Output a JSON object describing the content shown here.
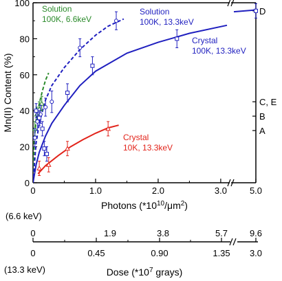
{
  "chart_data": {
    "type": "scatter",
    "title": "",
    "colors": {
      "solution_66": "#2a8a2a",
      "solution_133": "#1f1fbf",
      "crystal_133": "#1f1fbf",
      "crystal_10k": "#e2231a",
      "black": "#000000"
    },
    "y_axis": {
      "label": "Mn(II) Content (%)",
      "ylim": [
        0,
        100
      ],
      "ticks": [
        "0",
        "20",
        "40",
        "60",
        "80",
        "100"
      ]
    },
    "x_axis": {
      "label": "Photons (*10",
      "label_exp": "10",
      "label_tail": "/μm",
      "label_exp2": "2",
      "label_close": ")",
      "ticks": [
        "0",
        "1.0",
        "2.0",
        "3.0",
        "5.0"
      ],
      "xlim": [
        0,
        5.0
      ],
      "break_between": [
        3.1,
        4.8
      ]
    },
    "right_markers": [
      {
        "label": "D",
        "y": 95.5
      },
      {
        "label": "C, E",
        "y": 45
      },
      {
        "label": "B",
        "y": 37
      },
      {
        "label": "A",
        "y": 29
      }
    ],
    "series": [
      {
        "name": "Solution 100K, 6.6keV",
        "label_line1": "Solution",
        "label_line2": "100K, 6.6keV",
        "key": "solution_66",
        "marker": "triangle",
        "line": "dashed",
        "points": [
          {
            "x": 0.03,
            "y": 30,
            "err": 4
          },
          {
            "x": 0.06,
            "y": 38,
            "err": 4
          },
          {
            "x": 0.1,
            "y": 41,
            "err": 4
          },
          {
            "x": 0.14,
            "y": 44,
            "err": 4
          }
        ],
        "fit": [
          [
            0,
            0
          ],
          [
            0.02,
            24
          ],
          [
            0.05,
            35
          ],
          [
            0.1,
            44
          ],
          [
            0.15,
            51
          ],
          [
            0.2,
            57
          ],
          [
            0.25,
            61
          ]
        ]
      },
      {
        "name": "Solution 100K, 13.3keV",
        "label_line1": "Solution",
        "label_line2": "100K, 13.3keV",
        "key": "solution_133",
        "marker": "circle",
        "line": "dashed",
        "points": [
          {
            "x": 0.03,
            "y": 25,
            "err": 5
          },
          {
            "x": 0.07,
            "y": 34,
            "err": 5
          },
          {
            "x": 0.12,
            "y": 38,
            "err": 5
          },
          {
            "x": 0.2,
            "y": 42,
            "err": 5
          },
          {
            "x": 0.3,
            "y": 45,
            "err": 6
          },
          {
            "x": 0.75,
            "y": 75,
            "err": 5
          },
          {
            "x": 1.33,
            "y": 90,
            "err": 5
          }
        ],
        "fit": [
          [
            0,
            0
          ],
          [
            0.05,
            22
          ],
          [
            0.1,
            33
          ],
          [
            0.2,
            46
          ],
          [
            0.3,
            54
          ],
          [
            0.5,
            64
          ],
          [
            0.75,
            74
          ],
          [
            1.0,
            82
          ],
          [
            1.2,
            87
          ],
          [
            1.45,
            91
          ]
        ]
      },
      {
        "name": "Crystal 100K, 13.3keV",
        "label_line1": "Crystal",
        "label_line2": "100K, 13.3keV",
        "key": "crystal_133",
        "marker": "square",
        "line": "solid",
        "points": [
          {
            "x": 0.05,
            "y": 40,
            "err": 4
          },
          {
            "x": 0.1,
            "y": 36,
            "err": 4
          },
          {
            "x": 0.15,
            "y": 30,
            "err": 4
          },
          {
            "x": 0.18,
            "y": 19,
            "err": 4
          },
          {
            "x": 0.22,
            "y": 16,
            "err": 4
          },
          {
            "x": 0.55,
            "y": 50,
            "err": 5
          },
          {
            "x": 0.95,
            "y": 65,
            "err": 5
          },
          {
            "x": 2.3,
            "y": 80,
            "err": 5
          },
          {
            "x": 5.0,
            "y": 95.5,
            "err": 4
          }
        ],
        "fit": [
          [
            0,
            0
          ],
          [
            0.05,
            10
          ],
          [
            0.1,
            17
          ],
          [
            0.2,
            26
          ],
          [
            0.3,
            33
          ],
          [
            0.5,
            43
          ],
          [
            0.75,
            54
          ],
          [
            1.0,
            62
          ],
          [
            1.5,
            72
          ],
          [
            2.0,
            78
          ],
          [
            2.5,
            83
          ],
          [
            3.1,
            87.5
          ]
        ],
        "fit_after_break": [
          [
            4.8,
            95
          ],
          [
            5.0,
            96
          ]
        ]
      },
      {
        "name": "Crystal 10K, 13.3keV",
        "label_line1": "Crystal",
        "label_line2": "10K, 13.3keV",
        "key": "crystal_10k",
        "marker": "triangle",
        "line": "solid",
        "points": [
          {
            "x": 0.1,
            "y": 8,
            "err": 4
          },
          {
            "x": 0.25,
            "y": 10,
            "err": 4
          },
          {
            "x": 0.55,
            "y": 19,
            "err": 4
          },
          {
            "x": 1.2,
            "y": 30,
            "err": 4
          }
        ],
        "fit": [
          [
            0.08,
            5
          ],
          [
            0.2,
            9.5
          ],
          [
            0.4,
            15
          ],
          [
            0.6,
            20
          ],
          [
            0.8,
            24
          ],
          [
            1.0,
            27.5
          ],
          [
            1.2,
            30.5
          ],
          [
            1.37,
            32
          ]
        ]
      }
    ],
    "dose_axis": {
      "label": "Dose (*10",
      "label_exp": "7",
      "label_tail": " grays)",
      "energy_top": "(6.6 keV)",
      "energy_bottom": "(13.3 keV)",
      "top_ticks": [
        "0",
        "1.9",
        "3.8",
        "5.7",
        "9.6"
      ],
      "bottom_ticks": [
        "0",
        "0.45",
        "0.90",
        "1.35",
        "3.0"
      ]
    }
  }
}
